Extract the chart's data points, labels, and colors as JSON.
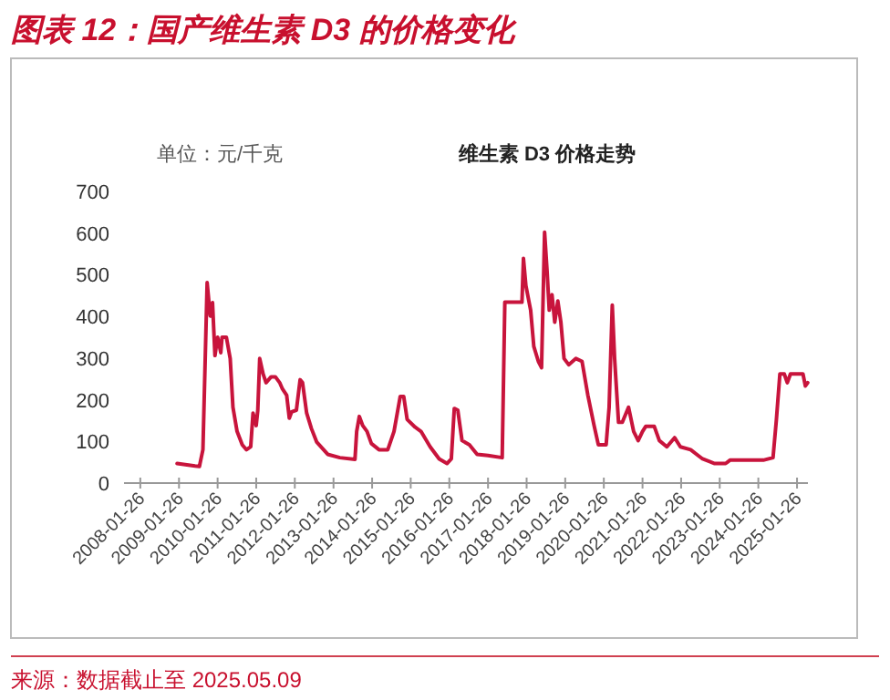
{
  "chart_data": {
    "type": "line",
    "title": "图表 12：国产维生素 D3 的价格变化",
    "subtitle": "维生素 D3 价格走势",
    "ylabel": "单位：元/千克",
    "annotations": [
      "来源：数据截止至 2025.05.09"
    ],
    "x": [
      "2009-01-08",
      "2009-06-27",
      "2009-08-07",
      "2009-09-09",
      "2009-10-19",
      "2009-11-17",
      "2009-12-09",
      "2010-01-01",
      "2010-01-26",
      "2010-02-25",
      "2010-03-09",
      "2010-04-19",
      "2010-05-25",
      "2010-06-20",
      "2010-07-29",
      "2010-09-16",
      "2010-10-26",
      "2010-12-05",
      "2010-12-27",
      "2011-01-26",
      "2011-02-10",
      "2011-02-28",
      "2011-04-01",
      "2011-04-29",
      "2011-06-16",
      "2011-07-26",
      "2011-09-05",
      "2011-10-01",
      "2011-11-10",
      "2011-12-05",
      "2011-12-27",
      "2012-02-10",
      "2012-03-16",
      "2012-04-08",
      "2012-05-17",
      "2012-07-01",
      "2012-08-21",
      "2012-12-02",
      "2013-03-27",
      "2013-08-17",
      "2013-09-02",
      "2013-09-27",
      "2013-10-29",
      "2013-12-09",
      "2014-01-19",
      "2014-04-01",
      "2014-06-23",
      "2014-08-21",
      "2014-10-19",
      "2014-11-21",
      "2014-12-23",
      "2015-03-09",
      "2015-05-03",
      "2015-07-29",
      "2015-10-22",
      "2016-01-04",
      "2016-02-14",
      "2016-03-13",
      "2016-04-15",
      "2016-05-25",
      "2016-08-03",
      "2016-10-15",
      "2017-01-26",
      "2017-06-09",
      "2017-07-04",
      "2017-12-13",
      "2017-12-27",
      "2018-01-19",
      "2018-03-05",
      "2018-04-04",
      "2018-05-17",
      "2018-06-16",
      "2018-07-15",
      "2018-08-07",
      "2018-08-28",
      "2018-09-23",
      "2018-10-19",
      "2018-11-17",
      "2018-12-16",
      "2019-01-15",
      "2019-02-28",
      "2019-05-07",
      "2019-07-04",
      "2019-08-28",
      "2019-10-26",
      "2019-12-05",
      "2020-02-17",
      "2020-03-16",
      "2020-04-15",
      "2020-05-07",
      "2020-06-13",
      "2020-07-19",
      "2020-09-16",
      "2020-11-03",
      "2020-12-16",
      "2021-01-26",
      "2021-02-25",
      "2021-05-17",
      "2021-07-04",
      "2021-09-13",
      "2021-11-25",
      "2022-01-19",
      "2022-04-26",
      "2022-08-17",
      "2022-12-09",
      "2023-03-23",
      "2023-05-03",
      "2023-07-26",
      "2024-03-13",
      "2024-06-13",
      "2024-07-15",
      "2024-08-17",
      "2024-09-27",
      "2024-10-26",
      "2024-11-25",
      "2025-02-17",
      "2025-03-23",
      "2025-04-15",
      "2025-05-07"
    ],
    "series": [
      {
        "color": "#c8143c",
        "values": [
          47,
          41,
          40,
          80,
          481,
          401,
          433,
          306,
          350,
          313,
          350,
          350,
          299,
          182,
          124,
          92,
          80,
          87,
          168,
          138,
          175,
          299,
          262,
          241,
          255,
          255,
          241,
          226,
          211,
          156,
          171,
          175,
          248,
          241,
          168,
          131,
          98,
          69,
          61,
          57,
          124,
          160,
          138,
          124,
          95,
          80,
          80,
          124,
          208,
          208,
          153,
          134,
          124,
          87,
          58,
          47,
          58,
          179,
          175,
          102,
          92,
          69,
          66,
          61,
          434,
          434,
          539,
          474,
          415,
          328,
          292,
          277,
          602,
          510,
          415,
          452,
          386,
          437,
          386,
          299,
          284,
          299,
          292,
          211,
          138,
          92,
          92,
          182,
          427,
          299,
          146,
          146,
          182,
          124,
          102,
          124,
          136,
          136,
          102,
          87,
          109,
          87,
          80,
          58,
          47,
          47,
          55,
          55,
          55,
          61,
          153,
          262,
          262,
          241,
          262,
          262,
          262,
          233,
          241
        ]
      }
    ],
    "xlim": [
      "2007-08-25",
      "2025-05-09"
    ],
    "xticks": [
      "2008-01-26",
      "2009-01-26",
      "2010-01-26",
      "2011-01-26",
      "2012-01-26",
      "2013-01-26",
      "2014-01-26",
      "2015-01-26",
      "2016-01-26",
      "2017-01-26",
      "2018-01-26",
      "2019-01-26",
      "2020-01-26",
      "2021-01-26",
      "2022-01-26",
      "2023-01-26",
      "2024-01-26",
      "2025-01-26"
    ],
    "ylim": [
      0,
      700
    ],
    "yticks": [
      0,
      100,
      200,
      300,
      400,
      500,
      600,
      700
    ],
    "grid": false,
    "marker": "none",
    "line_style": "solid"
  }
}
